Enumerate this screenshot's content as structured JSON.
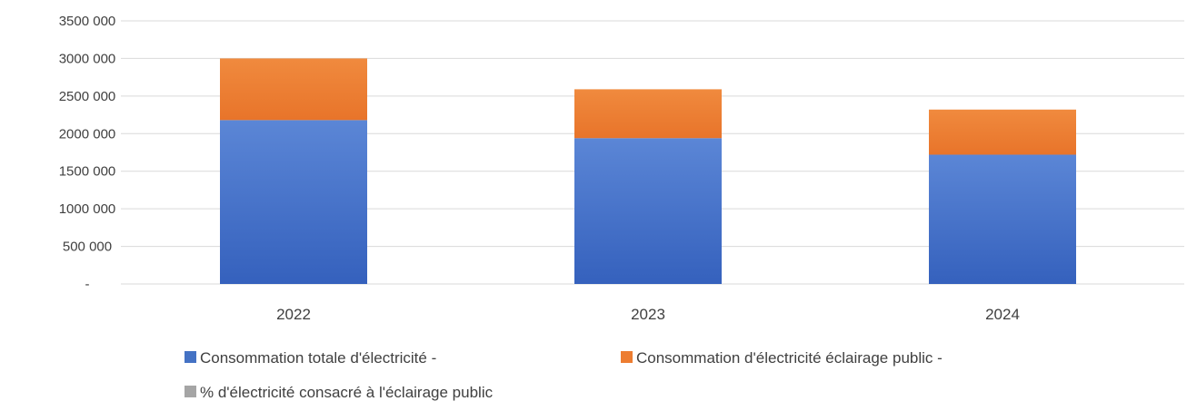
{
  "chart_data": {
    "type": "bar",
    "stacked": true,
    "title": "",
    "xlabel": "",
    "ylabel": "",
    "categories": [
      "2022",
      "2023",
      "2024"
    ],
    "series": [
      {
        "name": "Consommation totale d'électricité  -",
        "color": "#4472c4",
        "values": [
          2180000,
          1940000,
          1720000
        ]
      },
      {
        "name": "Consommation d'électricité éclairage public  -",
        "color": "#ed7d31",
        "values": [
          820000,
          650000,
          600000
        ]
      },
      {
        "name": "% d'électricité consacré à l'éclairage public",
        "color": "#a5a5a5",
        "values": [
          null,
          null,
          null
        ]
      }
    ],
    "ylim": [
      0,
      3500000
    ],
    "yticks": [
      0,
      500000,
      1000000,
      1500000,
      2000000,
      2500000,
      3000000,
      3500000
    ],
    "ytick_labels": [
      "-",
      "500 000",
      "1000 000",
      "1500 000",
      "2000 000",
      "2500 000",
      "3000 000",
      "3500 000"
    ],
    "grid": true,
    "legend_position": "bottom"
  }
}
